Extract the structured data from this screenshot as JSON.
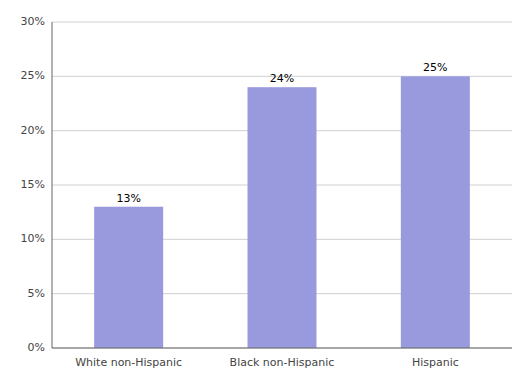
{
  "chart_data": {
    "type": "bar",
    "categories": [
      "White non-Hispanic",
      "Black non-Hispanic",
      "Hispanic"
    ],
    "values": [
      13,
      24,
      25
    ],
    "value_labels": [
      "13%",
      "24%",
      "25%"
    ],
    "color": "#9999dd",
    "ylim": [
      0,
      30
    ],
    "yticks": [
      {
        "value": 0,
        "label": "0%"
      },
      {
        "value": 5,
        "label": "5%"
      },
      {
        "value": 10,
        "label": "10%"
      },
      {
        "value": 15,
        "label": "15%"
      },
      {
        "value": 20,
        "label": "20%"
      },
      {
        "value": 25,
        "label": "25%"
      },
      {
        "value": 30,
        "label": "30%"
      }
    ],
    "grid": true,
    "data_labels": true
  }
}
